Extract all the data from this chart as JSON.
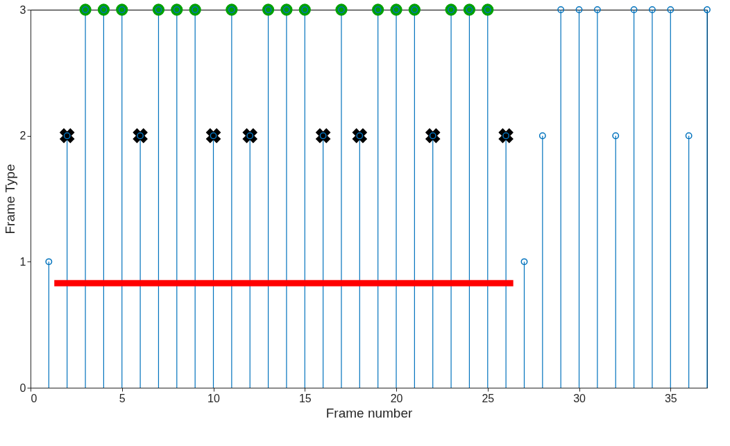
{
  "chart_data": {
    "type": "lollipop",
    "xlabel": "Frame number",
    "ylabel": "Frame Type",
    "xlim": [
      0,
      37
    ],
    "xticks": [
      0,
      5,
      10,
      15,
      20,
      25,
      30,
      35
    ],
    "ylim": [
      0,
      3
    ],
    "yticks": [
      0,
      1,
      2,
      3
    ],
    "grid": false,
    "series": [
      {
        "color": "#0072bd",
        "marker": "circle",
        "x": [
          1,
          2,
          3,
          4,
          5,
          6,
          7,
          8,
          9,
          10,
          11,
          12,
          13,
          14,
          15,
          16,
          17,
          18,
          19,
          20,
          21,
          22,
          23,
          24,
          25,
          26,
          27,
          28,
          29,
          30,
          31,
          32,
          33,
          34,
          35,
          36,
          37
        ],
        "values": [
          1,
          2,
          3,
          3,
          3,
          2,
          3,
          3,
          3,
          2,
          3,
          2,
          3,
          3,
          3,
          2,
          3,
          2,
          3,
          3,
          3,
          2,
          3,
          3,
          3,
          2,
          1,
          2,
          3,
          3,
          3,
          2,
          3,
          3,
          3,
          2,
          3
        ]
      },
      {
        "type": "scatter",
        "color": "#00a000",
        "marker": "circle",
        "x": [
          3,
          4,
          5,
          7,
          8,
          9,
          11,
          13,
          14,
          15,
          17,
          19,
          20,
          21,
          23,
          24,
          25
        ],
        "values": [
          3,
          3,
          3,
          3,
          3,
          3,
          3,
          3,
          3,
          3,
          3,
          3,
          3,
          3,
          3,
          3,
          3
        ]
      },
      {
        "type": "scatter",
        "color": "#000000",
        "marker": "cross",
        "x": [
          2,
          6,
          10,
          12,
          16,
          18,
          22,
          26
        ],
        "values": [
          2,
          2,
          2,
          2,
          2,
          2,
          2,
          2
        ]
      },
      {
        "type": "line",
        "color": "#ff0000",
        "x": [
          1.3,
          26.4
        ],
        "values": [
          0.83,
          0.83
        ]
      }
    ]
  }
}
